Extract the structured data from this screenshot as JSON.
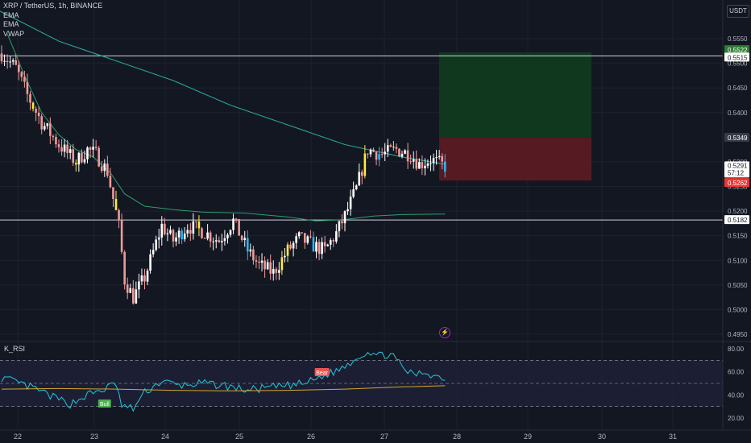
{
  "header": {
    "symbol_line": "XRP / TetherUS, 1h, BINANCE",
    "indicators": [
      "EMA",
      "EMA",
      "VWAP"
    ],
    "currency": "USDT"
  },
  "rsi_panel": {
    "title": "K_RSI",
    "bull_label": "Bull",
    "bear_label": "Bear",
    "ticks": [
      "80.00",
      "60.00",
      "40.00",
      "20.00"
    ]
  },
  "price_axis": {
    "ticks": [
      "0.5550",
      "0.5500",
      "0.5450",
      "0.5400",
      "0.5300",
      "0.5250",
      "0.5200",
      "0.5150",
      "0.5100",
      "0.5050",
      "0.5000",
      "0.4950"
    ],
    "tags": {
      "target": "0.5522",
      "resistance": "0.5515",
      "entry": "0.5349",
      "last_price": "0.5291",
      "countdown": "57:12",
      "stop": "0.5262",
      "support": "0.5182"
    }
  },
  "time_axis": {
    "labels": [
      "22",
      "23",
      "24",
      "25",
      "26",
      "27",
      "28",
      "29",
      "30",
      "31"
    ]
  },
  "colors": {
    "background": "#131722",
    "up": "#ffffff",
    "down": "#ef9a9a",
    "highlight": "#ffeb3b",
    "blue": "#29b6f6",
    "ema": "#26a69a",
    "rsi": "#26c6da",
    "rsi_ma": "#d4a72c",
    "profit_zone": "#0f3a1f",
    "loss_zone": "#5a1a24",
    "grid": "#1e222d"
  },
  "chart_data": {
    "type": "candlestick",
    "symbol": "XRP / TetherUS",
    "interval": "1h",
    "exchange": "BINANCE",
    "ylim": [
      0.492,
      0.5575
    ],
    "date_labels": [
      "22",
      "23",
      "24",
      "25",
      "26",
      "27",
      "28",
      "29",
      "30",
      "31"
    ],
    "anchors": [
      [
        0,
        0.552
      ],
      [
        5,
        0.549
      ],
      [
        9,
        0.5435
      ],
      [
        14,
        0.538
      ],
      [
        20,
        0.5335
      ],
      [
        26,
        0.53
      ],
      [
        30,
        0.5325
      ],
      [
        33,
        0.5315
      ],
      [
        37,
        0.528
      ],
      [
        41,
        0.517
      ],
      [
        43,
        0.506
      ],
      [
        46,
        0.5025
      ],
      [
        50,
        0.5065
      ],
      [
        56,
        0.517
      ],
      [
        60,
        0.514
      ],
      [
        65,
        0.517
      ],
      [
        70,
        0.516
      ],
      [
        76,
        0.514
      ],
      [
        81,
        0.518
      ],
      [
        86,
        0.512
      ],
      [
        90,
        0.509
      ],
      [
        95,
        0.5075
      ],
      [
        100,
        0.512
      ],
      [
        104,
        0.5145
      ],
      [
        109,
        0.513
      ],
      [
        113,
        0.512
      ],
      [
        117,
        0.5155
      ],
      [
        120,
        0.519
      ],
      [
        124,
        0.5245
      ],
      [
        128,
        0.5325
      ],
      [
        133,
        0.5315
      ],
      [
        138,
        0.5325
      ],
      [
        143,
        0.5315
      ],
      [
        146,
        0.5295
      ],
      [
        150,
        0.5305
      ],
      [
        155,
        0.5291
      ]
    ],
    "candles_count": 156,
    "levels": {
      "resistance": 0.5515,
      "support": 0.5182,
      "target": 0.5522,
      "entry": 0.5349,
      "stop": 0.5262
    },
    "ema_long": [
      [
        -2,
        0.561
      ],
      [
        20,
        0.5545
      ],
      [
        40,
        0.5505
      ],
      [
        60,
        0.5465
      ],
      [
        80,
        0.5415
      ],
      [
        100,
        0.5375
      ],
      [
        120,
        0.5335
      ],
      [
        140,
        0.531
      ],
      [
        155,
        0.5295
      ]
    ],
    "ema_short": [
      [
        2,
        0.556
      ],
      [
        8,
        0.5475
      ],
      [
        14,
        0.54
      ],
      [
        20,
        0.5355
      ],
      [
        26,
        0.5325
      ],
      [
        32,
        0.531
      ],
      [
        38,
        0.5278
      ],
      [
        43,
        0.5235
      ],
      [
        50,
        0.521
      ],
      [
        60,
        0.5203
      ],
      [
        70,
        0.5198
      ],
      [
        85,
        0.5196
      ],
      [
        100,
        0.5188
      ],
      [
        110,
        0.518
      ],
      [
        120,
        0.5183
      ],
      [
        130,
        0.519
      ],
      [
        140,
        0.5193
      ],
      [
        155,
        0.5194
      ]
    ],
    "rsi": {
      "ylim": [
        15,
        85
      ],
      "levels": [
        30,
        50,
        70
      ],
      "anchors": [
        [
          0,
          55
        ],
        [
          6,
          50
        ],
        [
          12,
          45
        ],
        [
          18,
          38
        ],
        [
          24,
          32
        ],
        [
          30,
          40
        ],
        [
          36,
          45
        ],
        [
          40,
          50
        ],
        [
          42,
          30
        ],
        [
          46,
          28
        ],
        [
          50,
          42
        ],
        [
          56,
          52
        ],
        [
          62,
          48
        ],
        [
          70,
          50
        ],
        [
          78,
          48
        ],
        [
          86,
          44
        ],
        [
          92,
          46
        ],
        [
          100,
          48
        ],
        [
          106,
          50
        ],
        [
          112,
          56
        ],
        [
          118,
          62
        ],
        [
          124,
          72
        ],
        [
          128,
          78
        ],
        [
          132,
          74
        ],
        [
          136,
          76
        ],
        [
          140,
          64
        ],
        [
          144,
          57
        ],
        [
          148,
          60
        ],
        [
          152,
          56
        ],
        [
          155,
          55
        ]
      ],
      "ma": [
        [
          0,
          45
        ],
        [
          20,
          45.5
        ],
        [
          40,
          45
        ],
        [
          60,
          44
        ],
        [
          80,
          43.5
        ],
        [
          100,
          44
        ],
        [
          120,
          45
        ],
        [
          140,
          47
        ],
        [
          155,
          48
        ]
      ],
      "bull_at": 36,
      "bear_at": 112
    }
  }
}
